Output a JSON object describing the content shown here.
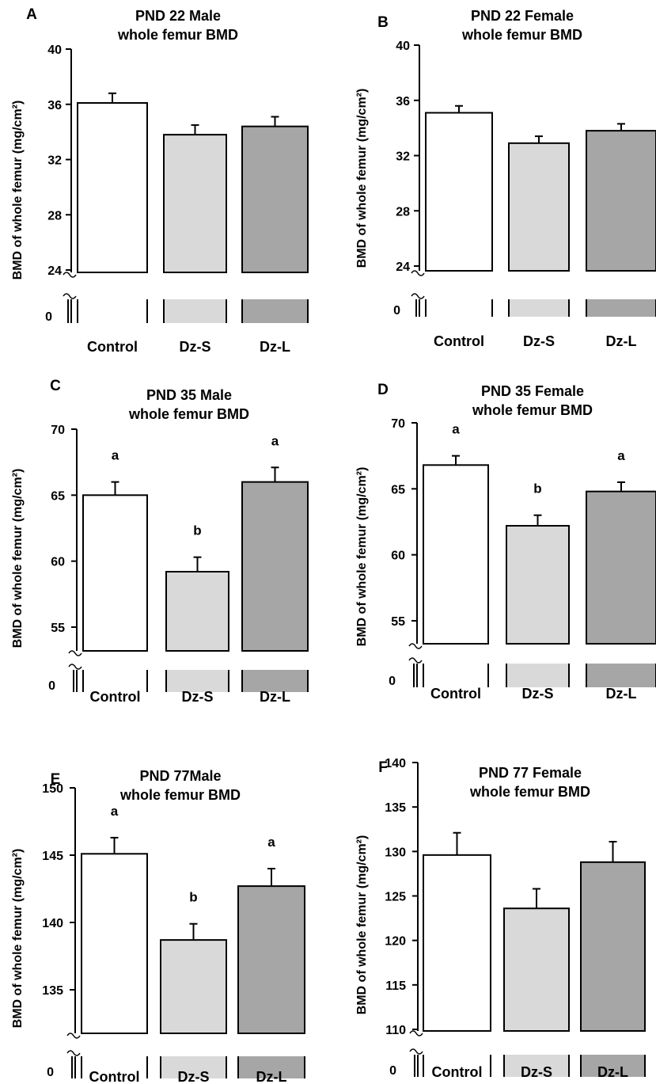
{
  "chart_data": [
    {
      "panel": "A",
      "type": "bar",
      "title": [
        "PND 22 Male",
        "whole femur BMD"
      ],
      "ylabel": "BMD of whole femur  (mg/cm²)",
      "categories": [
        "Control",
        "Dz-S",
        "Dz-L"
      ],
      "values": [
        36.1,
        33.8,
        34.4
      ],
      "errors": [
        0.7,
        0.7,
        0.7
      ],
      "letters": [
        "",
        "",
        ""
      ],
      "yticks": [
        24,
        28,
        32,
        36,
        40
      ],
      "ylim": [
        24,
        40
      ],
      "break_label": "0",
      "colors": [
        "#ffffff",
        "#d9d9d9",
        "#a6a6a6"
      ]
    },
    {
      "panel": "B",
      "type": "bar",
      "title": [
        "PND 22 Female",
        "whole femur BMD"
      ],
      "ylabel": "BMD of whole femur  (mg/cm²)",
      "categories": [
        "Control",
        "Dz-S",
        "Dz-L"
      ],
      "values": [
        35.1,
        32.9,
        33.8
      ],
      "errors": [
        0.5,
        0.5,
        0.5
      ],
      "letters": [
        "",
        "",
        ""
      ],
      "yticks": [
        24,
        28,
        32,
        36,
        40
      ],
      "ylim": [
        24,
        40
      ],
      "break_label": "0",
      "colors": [
        "#ffffff",
        "#d9d9d9",
        "#a6a6a6"
      ]
    },
    {
      "panel": "C",
      "type": "bar",
      "title": [
        "PND 35 Male",
        "whole femur BMD"
      ],
      "ylabel": "BMD of whole femur  (mg/cm²)",
      "categories": [
        "Control",
        "Dz-S",
        "Dz-L"
      ],
      "values": [
        65.0,
        59.2,
        66.0
      ],
      "errors": [
        1.0,
        1.1,
        1.1
      ],
      "letters": [
        "a",
        "b",
        "a"
      ],
      "yticks": [
        55,
        60,
        65,
        70
      ],
      "ylim": [
        55,
        70
      ],
      "break_label": "0",
      "colors": [
        "#ffffff",
        "#d9d9d9",
        "#a6a6a6"
      ]
    },
    {
      "panel": "D",
      "type": "bar",
      "title": [
        "PND 35 Female",
        "whole femur BMD"
      ],
      "ylabel": "BMD of whole femur  (mg/cm²)",
      "categories": [
        "Control",
        "Dz-S",
        "Dz-L"
      ],
      "values": [
        66.8,
        62.2,
        64.8
      ],
      "errors": [
        0.7,
        0.8,
        0.7
      ],
      "letters": [
        "a",
        "b",
        "a"
      ],
      "yticks": [
        55,
        60,
        65,
        70
      ],
      "ylim": [
        55,
        70
      ],
      "break_label": "0",
      "colors": [
        "#ffffff",
        "#d9d9d9",
        "#a6a6a6"
      ]
    },
    {
      "panel": "E",
      "type": "bar",
      "title": [
        "PND 77Male",
        "whole femur BMD"
      ],
      "ylabel": "BMD of whole femur  (mg/cm²)",
      "categories": [
        "Control",
        "Dz-S",
        "Dz-L"
      ],
      "values": [
        145.1,
        138.7,
        142.7
      ],
      "errors": [
        1.2,
        1.2,
        1.3
      ],
      "letters": [
        "a",
        "b",
        "a"
      ],
      "yticks": [
        135,
        140,
        145,
        150
      ],
      "ylim": [
        135,
        150
      ],
      "break_label": "0",
      "colors": [
        "#ffffff",
        "#d9d9d9",
        "#a6a6a6"
      ]
    },
    {
      "panel": "F",
      "type": "bar",
      "title": [
        "PND 77 Female",
        "whole femur BMD"
      ],
      "ylabel": "BMD of whole femur  (mg/cm²)",
      "categories": [
        "Control",
        "Dz-S",
        "Dz-L"
      ],
      "values": [
        129.6,
        123.6,
        128.8
      ],
      "errors": [
        2.5,
        2.2,
        2.3
      ],
      "letters": [
        "",
        "",
        ""
      ],
      "yticks": [
        110,
        115,
        120,
        125,
        130,
        135,
        140
      ],
      "ylim": [
        110,
        140
      ],
      "break_label": "0",
      "colors": [
        "#ffffff",
        "#d9d9d9",
        "#a6a6a6"
      ]
    }
  ]
}
